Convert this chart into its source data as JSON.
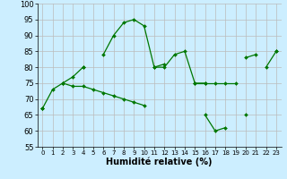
{
  "x": [
    0,
    1,
    2,
    3,
    4,
    5,
    6,
    7,
    8,
    9,
    10,
    11,
    12,
    13,
    14,
    15,
    16,
    17,
    18,
    19,
    20,
    21,
    22,
    23
  ],
  "line1": [
    67,
    73,
    75,
    null,
    80,
    null,
    84,
    90,
    94,
    95,
    93,
    80,
    80,
    84,
    85,
    75,
    75,
    null,
    null,
    null,
    83,
    84,
    null,
    85
  ],
  "line2": [
    67,
    null,
    75,
    77,
    80,
    null,
    null,
    null,
    null,
    null,
    null,
    80,
    81,
    null,
    null,
    75,
    75,
    75,
    75,
    75,
    null,
    null,
    80,
    85
  ],
  "line3": [
    67,
    null,
    75,
    74,
    74,
    73,
    72,
    71,
    70,
    69,
    68,
    null,
    null,
    null,
    null,
    null,
    65,
    60,
    61,
    null,
    65,
    null,
    null,
    null
  ],
  "xlabel": "Humidité relative (%)",
  "ylim": [
    55,
    100
  ],
  "xlim": [
    -0.5,
    23.5
  ],
  "yticks": [
    55,
    60,
    65,
    70,
    75,
    80,
    85,
    90,
    95,
    100
  ],
  "xticks": [
    0,
    1,
    2,
    3,
    4,
    5,
    6,
    7,
    8,
    9,
    10,
    11,
    12,
    13,
    14,
    15,
    16,
    17,
    18,
    19,
    20,
    21,
    22,
    23
  ],
  "line_color": "#007700",
  "bg_color": "#cceeff",
  "grid_color": "#bbbbbb",
  "xlabel_fontsize": 7,
  "ytick_fontsize": 6,
  "xtick_fontsize": 5
}
